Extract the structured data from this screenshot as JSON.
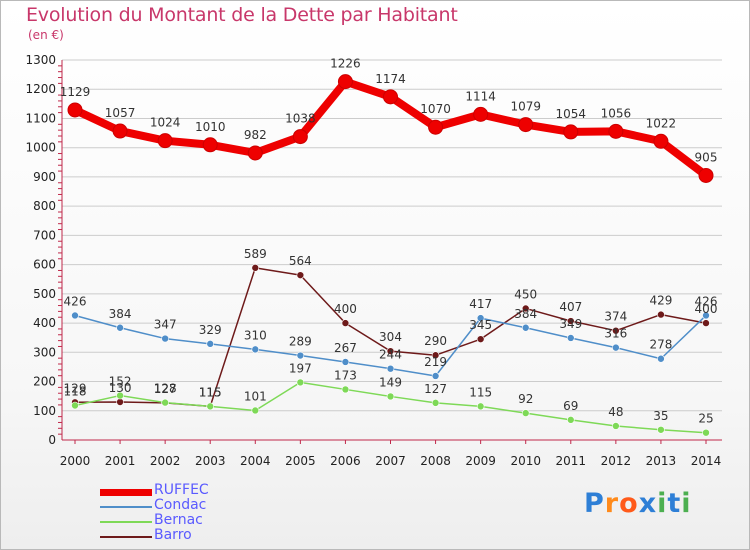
{
  "header": {
    "title": "Evolution du Montant de la Dette par Habitant",
    "unit": "(en €)"
  },
  "colors": {
    "title": "#c8376a",
    "legend_text": "#5a5aff",
    "grid": "#cccccc",
    "axis": "#c0284a"
  },
  "logo": {
    "text": "Proxiti"
  },
  "chart_data": {
    "type": "line",
    "title": "Evolution du Montant de la Dette par Habitant",
    "ylabel": "(en €)",
    "x": [
      "2000",
      "2001",
      "2002",
      "2003",
      "2004",
      "2005",
      "2006",
      "2007",
      "2008",
      "2009",
      "2010",
      "2011",
      "2012",
      "2013",
      "2014"
    ],
    "ylim": [
      0,
      1300
    ],
    "yticks": [
      "0",
      "100",
      "200",
      "300",
      "400",
      "500",
      "600",
      "700",
      "800",
      "900",
      "1000",
      "1100",
      "1200",
      "1300"
    ],
    "grid": "horizontal",
    "legend_position": "bottom-left",
    "series": [
      {
        "name": "RUFFEC",
        "color": "#ee0000",
        "values": [
          1129,
          1057,
          1024,
          1010,
          982,
          1038,
          1226,
          1174,
          1070,
          1114,
          1079,
          1054,
          1056,
          1022,
          905
        ],
        "labels": [
          "1129",
          "1057",
          "1024",
          "1010",
          "982",
          "1038",
          "1226",
          "1174",
          "1070",
          "1114",
          "1079",
          "1054",
          "1056",
          "1022",
          "905"
        ]
      },
      {
        "name": "Condac",
        "color": "#4f8ec9",
        "values": [
          426,
          384,
          347,
          329,
          310,
          289,
          267,
          244,
          219,
          417,
          384,
          349,
          316,
          278,
          426
        ],
        "labels": [
          "426",
          "384",
          "347",
          "329",
          "310",
          "289",
          "267",
          "244",
          "219",
          "417",
          "384",
          "349",
          "316",
          "278",
          "426"
        ]
      },
      {
        "name": "Bernac",
        "color": "#7ed957",
        "values": [
          118,
          152,
          128,
          115,
          101,
          197,
          173,
          149,
          127,
          115,
          92,
          69,
          48,
          35,
          25
        ],
        "labels": [
          "118",
          "152",
          "128",
          "115",
          "101",
          "197",
          "173",
          "149",
          "127",
          "115",
          "92",
          "69",
          "48",
          "35",
          "25"
        ]
      },
      {
        "name": "Barro",
        "color": "#6e1a1a",
        "values": [
          129,
          130,
          127,
          115,
          589,
          564,
          400,
          304,
          290,
          345,
          450,
          407,
          374,
          429,
          400
        ],
        "labels": [
          "129",
          "130",
          "127",
          "115",
          "589",
          "564",
          "400",
          "304",
          "290",
          "345",
          "450",
          "407",
          "374",
          "429",
          "400"
        ]
      }
    ]
  }
}
